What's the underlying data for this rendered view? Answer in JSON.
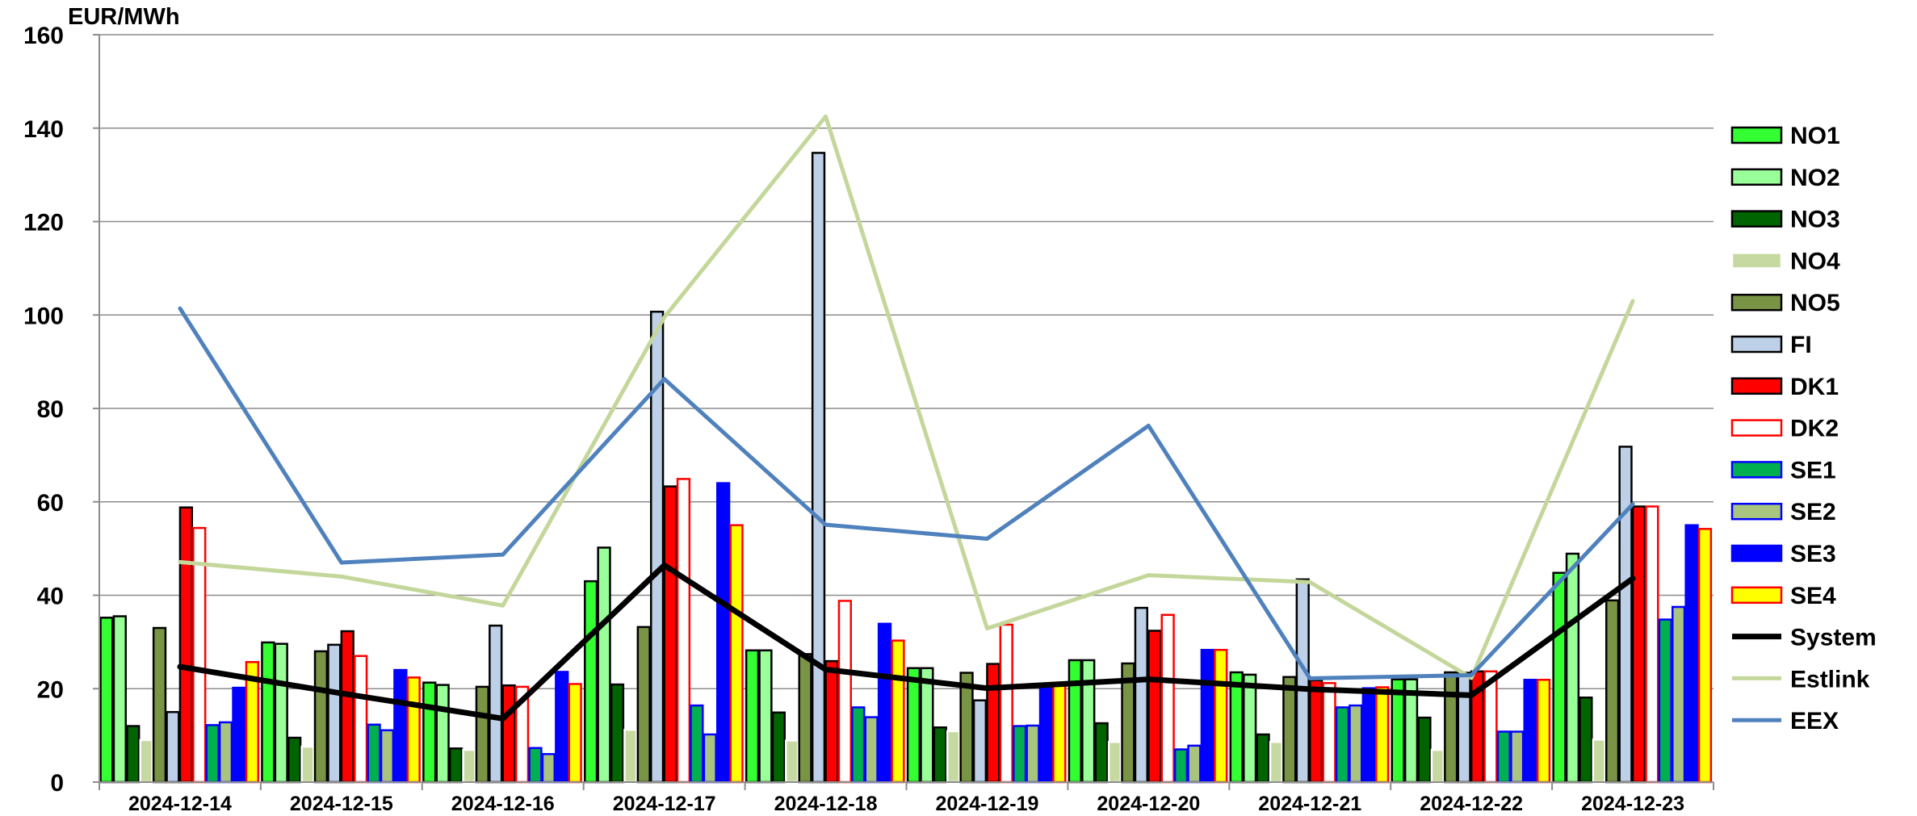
{
  "chart_data": {
    "type": "bar",
    "ylabel": "EUR/MWh",
    "ylim": [
      0,
      160
    ],
    "yticks": [
      0,
      20,
      40,
      60,
      80,
      100,
      120,
      140,
      160
    ],
    "grid": true,
    "legend_position": "right",
    "categories": [
      "2024-12-14",
      "2024-12-15",
      "2024-12-16",
      "2024-12-17",
      "2024-12-18",
      "2024-12-19",
      "2024-12-20",
      "2024-12-21",
      "2024-12-22",
      "2024-12-23"
    ],
    "series": [
      {
        "name": "NO1",
        "kind": "bar",
        "fill": "#33ff33",
        "stroke": "#000000",
        "values": [
          35.2,
          29.9,
          21.3,
          43.0,
          28.2,
          24.4,
          26.1,
          23.5,
          22.0,
          44.8
        ]
      },
      {
        "name": "NO2",
        "kind": "bar",
        "fill": "#99ff99",
        "stroke": "#000000",
        "values": [
          35.5,
          29.6,
          20.8,
          50.2,
          28.2,
          24.4,
          26.1,
          23.0,
          22.0,
          48.9
        ]
      },
      {
        "name": "NO3",
        "kind": "bar",
        "fill": "#006400",
        "stroke": "#000000",
        "values": [
          12.0,
          9.5,
          7.2,
          20.9,
          14.9,
          11.7,
          12.6,
          10.2,
          13.8,
          18.1
        ]
      },
      {
        "name": "NO4",
        "kind": "bar",
        "fill": "#c6d9a0",
        "stroke": "#ffffff",
        "values": [
          9.0,
          7.6,
          6.9,
          11.2,
          8.9,
          10.9,
          8.6,
          8.6,
          6.9,
          9.1
        ]
      },
      {
        "name": "NO5",
        "kind": "bar",
        "fill": "#7a9445",
        "stroke": "#000000",
        "values": [
          33.0,
          28.0,
          20.4,
          33.2,
          27.4,
          23.4,
          25.4,
          22.5,
          23.5,
          38.9
        ]
      },
      {
        "name": "FI",
        "kind": "bar",
        "fill": "#bdd0e8",
        "stroke": "#000000",
        "values": [
          15.0,
          29.4,
          33.5,
          100.7,
          134.7,
          17.5,
          37.3,
          43.4,
          23.4,
          71.8
        ]
      },
      {
        "name": "DK1",
        "kind": "bar",
        "fill": "#ff0000",
        "stroke": "#000000",
        "values": [
          58.8,
          32.3,
          20.7,
          63.3,
          25.9,
          25.3,
          32.4,
          21.8,
          23.7,
          59.0
        ]
      },
      {
        "name": "DK2",
        "kind": "bar",
        "fill": "#ffffff",
        "stroke": "#ff0000",
        "values": [
          54.4,
          27.0,
          20.4,
          64.9,
          38.8,
          33.7,
          35.8,
          21.2,
          23.7,
          59.0
        ]
      },
      {
        "name": "SE1",
        "kind": "bar",
        "fill": "#00b050",
        "stroke": "#0000ff",
        "values": [
          12.2,
          12.3,
          7.3,
          16.4,
          16.0,
          12.0,
          7.0,
          16.0,
          10.8,
          34.8
        ]
      },
      {
        "name": "SE2",
        "kind": "bar",
        "fill": "#a9c47f",
        "stroke": "#0000ff",
        "values": [
          12.8,
          11.1,
          6.0,
          10.2,
          13.9,
          12.1,
          7.8,
          16.4,
          10.8,
          37.5
        ]
      },
      {
        "name": "SE3",
        "kind": "bar",
        "fill": "#0000ff",
        "stroke": "#0000ff",
        "values": [
          20.2,
          24.0,
          23.6,
          64.0,
          33.9,
          20.9,
          28.3,
          20.1,
          21.9,
          55.0
        ]
      },
      {
        "name": "SE4",
        "kind": "bar",
        "fill": "#ffff00",
        "stroke": "#ff0000",
        "values": [
          25.7,
          22.4,
          21.0,
          55.0,
          30.3,
          20.9,
          28.3,
          20.3,
          21.9,
          54.2
        ]
      },
      {
        "name": "System",
        "kind": "line",
        "color": "#000000",
        "width": 7,
        "values": [
          24.7,
          19.0,
          13.6,
          46.4,
          24.1,
          20.1,
          22.0,
          19.9,
          18.6,
          43.6
        ]
      },
      {
        "name": "Estlink",
        "kind": "line",
        "color": "#c4d79b",
        "width": 5,
        "values": [
          47.1,
          44.0,
          37.8,
          99.5,
          142.5,
          32.9,
          44.3,
          42.8,
          22.3,
          103.0
        ]
      },
      {
        "name": "EEX",
        "kind": "line",
        "color": "#4f81bd",
        "width": 5,
        "values": [
          101.4,
          47.0,
          48.7,
          86.3,
          55.1,
          52.1,
          76.3,
          22.2,
          22.9,
          59.5
        ]
      }
    ]
  }
}
